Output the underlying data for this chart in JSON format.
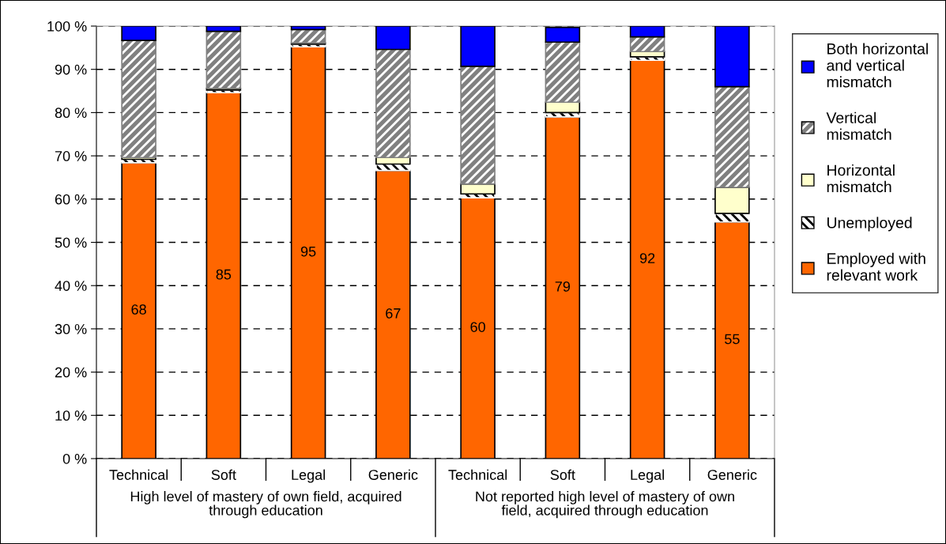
{
  "chart_data": {
    "type": "bar",
    "stacked": true,
    "categories": [
      "Technical",
      "Soft",
      "Legal",
      "Generic",
      "Technical",
      "Soft",
      "Legal",
      "Generic"
    ],
    "series": [
      {
        "name": "Employed with relevant work",
        "color": "#ff6600",
        "values": [
          68.4,
          84.6,
          95.2,
          66.6,
          60.3,
          79.0,
          92.1,
          54.7
        ],
        "value_labels": [
          "68",
          "85",
          "95",
          "67",
          "60",
          "79",
          "92",
          "55"
        ]
      },
      {
        "name": "Unemployed",
        "color": "#ffffff",
        "values": [
          0.8,
          0.6,
          0.6,
          1.5,
          0.9,
          1.0,
          0.8,
          2.0
        ]
      },
      {
        "name": "Horizontal mismatch",
        "color": "#ffffcc",
        "values": [
          0.4,
          0.4,
          0.3,
          1.5,
          2.3,
          2.4,
          1.2,
          6.0
        ]
      },
      {
        "name": "Vertical mismatch",
        "color": "#808080",
        "values": [
          27.1,
          13.2,
          3.1,
          25.0,
          27.2,
          13.9,
          3.4,
          23.3
        ]
      },
      {
        "name": "Both horizontal and vertical mismatch",
        "color": "#0000ff",
        "values": [
          3.3,
          1.2,
          0.8,
          5.4,
          9.3,
          3.4,
          2.5,
          14.0
        ]
      }
    ],
    "ylim": [
      0,
      100
    ],
    "yticks": [
      {
        "value": 0,
        "label": "0 %"
      },
      {
        "value": 10,
        "label": "10 %"
      },
      {
        "value": 20,
        "label": "20 %"
      },
      {
        "value": 30,
        "label": "30 %"
      },
      {
        "value": 40,
        "label": "40 %"
      },
      {
        "value": 50,
        "label": "50 %"
      },
      {
        "value": 60,
        "label": "60 %"
      },
      {
        "value": 70,
        "label": "70 %"
      },
      {
        "value": 80,
        "label": "80 %"
      },
      {
        "value": 90,
        "label": "90 %"
      },
      {
        "value": 100,
        "label": "100 %"
      }
    ],
    "grid": "y",
    "legend": "right",
    "annotations": [
      "High level of mastery of own field, acquired through education",
      "Not reported high level of mastery of own field, acquired through education"
    ]
  }
}
